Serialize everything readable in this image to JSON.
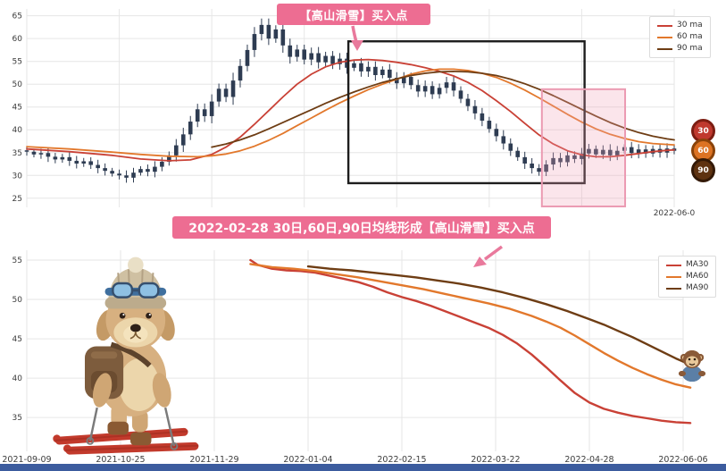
{
  "colors": {
    "ma30": "#c94136",
    "ma60": "#e2782c",
    "ma90": "#6e3d14",
    "candle": "#2e3c52",
    "grid": "#e6e6e6",
    "tick_text": "#3c3c3c",
    "pink": "#ed6d92",
    "pink_box_border": "#eb9ab2",
    "pink_box_fill": "rgba(242,163,184,0.28)",
    "black_box": "#1d1d1d",
    "bottom_bar": "#3c5c9e"
  },
  "annotations_text": {
    "callout": "【高山滑雪】买入点",
    "banner": "2022-02-28 30日,60日,90日均线形成【高山滑雪】买入点"
  },
  "badges": [
    {
      "label": "30",
      "fill": "#c0392e",
      "ring": "#7c1d12"
    },
    {
      "label": "60",
      "fill": "#dd7323",
      "ring": "#8a4309"
    },
    {
      "label": "90",
      "fill": "#5e3210",
      "ring": "#331906"
    }
  ],
  "chart_data": [
    {
      "type": "candlestick+ma",
      "title": "",
      "x_range": [
        "2021-09-09",
        "2022-06-06"
      ],
      "x_tick_idx": [
        0,
        13,
        26,
        39,
        52,
        65,
        78,
        91
      ],
      "x_tick_labels": [
        "2021-09-09",
        "2021-10-25",
        "2021-11-29",
        "2022-01-04",
        "2022-02-15",
        "2022-03-22",
        "2022-04-28",
        "2022-06-06"
      ],
      "show_x_labels": false,
      "x_last_label": "2022-06-0",
      "y_ticks": [
        25,
        30,
        35,
        40,
        45,
        50,
        55,
        60,
        65
      ],
      "ylim": [
        23,
        66.5
      ],
      "legend_position": "upper right",
      "closes": [
        35.2,
        34.6,
        34.9,
        34.1,
        33.5,
        34.0,
        33.2,
        32.6,
        33.1,
        32.3,
        31.6,
        31.0,
        30.4,
        30.0,
        29.5,
        30.6,
        31.4,
        30.8,
        31.9,
        33.0,
        34.4,
        36.6,
        39.0,
        41.8,
        44.5,
        43.0,
        46.2,
        49.0,
        47.2,
        50.8,
        54.0,
        57.5,
        61.0,
        63.0,
        60.0,
        62.0,
        58.5,
        56.0,
        57.6,
        55.4,
        56.8,
        54.8,
        56.2,
        54.4,
        55.6,
        53.6,
        54.6,
        52.8,
        53.8,
        52.0,
        53.2,
        51.4,
        50.2,
        51.6,
        49.8,
        48.4,
        49.6,
        47.8,
        49.2,
        50.4,
        48.6,
        46.8,
        45.2,
        43.6,
        42.0,
        40.2,
        38.6,
        37.0,
        35.4,
        34.0,
        32.6,
        31.6,
        30.8,
        32.4,
        33.8,
        32.9,
        34.4,
        33.6,
        34.8,
        35.8,
        34.6,
        35.6,
        34.4,
        35.4,
        36.2,
        34.9,
        35.7,
        34.8,
        35.8,
        35.0,
        35.9,
        35.4
      ],
      "series": [
        {
          "name": "30 ma",
          "color": "#c94136",
          "points": [
            [
              0,
              35.8
            ],
            [
              6,
              35.2
            ],
            [
              12,
              34.4
            ],
            [
              16,
              33.6
            ],
            [
              20,
              33.2
            ],
            [
              23,
              33.4
            ],
            [
              26,
              34.6
            ],
            [
              28,
              36.2
            ],
            [
              30,
              38.4
            ],
            [
              32,
              41.2
            ],
            [
              34,
              44.2
            ],
            [
              36,
              47.2
            ],
            [
              38,
              50.0
            ],
            [
              40,
              52.2
            ],
            [
              42,
              53.8
            ],
            [
              44,
              54.8
            ],
            [
              46,
              55.3
            ],
            [
              48,
              55.4
            ],
            [
              50,
              55.2
            ],
            [
              52,
              54.8
            ],
            [
              54,
              54.3
            ],
            [
              56,
              53.6
            ],
            [
              58,
              52.8
            ],
            [
              60,
              51.8
            ],
            [
              62,
              50.4
            ],
            [
              64,
              48.6
            ],
            [
              66,
              46.4
            ],
            [
              68,
              44.0
            ],
            [
              70,
              41.4
            ],
            [
              72,
              38.9
            ],
            [
              74,
              36.9
            ],
            [
              76,
              35.4
            ],
            [
              78,
              34.5
            ],
            [
              80,
              34.1
            ],
            [
              82,
              34.1
            ],
            [
              84,
              34.4
            ],
            [
              86,
              34.8
            ],
            [
              88,
              35.2
            ],
            [
              90,
              35.5
            ],
            [
              91,
              35.6
            ]
          ]
        },
        {
          "name": "60 ma",
          "color": "#e2782c",
          "points": [
            [
              0,
              36.3
            ],
            [
              6,
              35.8
            ],
            [
              12,
              35.1
            ],
            [
              16,
              34.6
            ],
            [
              20,
              34.2
            ],
            [
              24,
              34.1
            ],
            [
              26,
              34.3
            ],
            [
              28,
              34.7
            ],
            [
              30,
              35.4
            ],
            [
              32,
              36.4
            ],
            [
              34,
              37.7
            ],
            [
              36,
              39.2
            ],
            [
              38,
              40.9
            ],
            [
              40,
              42.6
            ],
            [
              42,
              44.3
            ],
            [
              44,
              45.9
            ],
            [
              46,
              47.4
            ],
            [
              48,
              48.8
            ],
            [
              50,
              50.0
            ],
            [
              52,
              51.1
            ],
            [
              54,
              52.2
            ],
            [
              56,
              52.9
            ],
            [
              58,
              53.3
            ],
            [
              60,
              53.3
            ],
            [
              62,
              53.0
            ],
            [
              64,
              52.4
            ],
            [
              66,
              51.5
            ],
            [
              68,
              50.2
            ],
            [
              70,
              48.7
            ],
            [
              72,
              47.0
            ],
            [
              74,
              45.2
            ],
            [
              76,
              43.4
            ],
            [
              78,
              41.7
            ],
            [
              80,
              40.2
            ],
            [
              82,
              39.0
            ],
            [
              84,
              38.1
            ],
            [
              86,
              37.4
            ],
            [
              88,
              37.0
            ],
            [
              90,
              36.8
            ],
            [
              91,
              36.7
            ]
          ]
        },
        {
          "name": "90 ma",
          "color": "#6e3d14",
          "points": [
            [
              26,
              36.2
            ],
            [
              28,
              36.9
            ],
            [
              30,
              37.8
            ],
            [
              32,
              38.9
            ],
            [
              34,
              40.2
            ],
            [
              36,
              41.6
            ],
            [
              38,
              43.0
            ],
            [
              40,
              44.4
            ],
            [
              42,
              45.8
            ],
            [
              44,
              47.1
            ],
            [
              46,
              48.3
            ],
            [
              48,
              49.4
            ],
            [
              50,
              50.4
            ],
            [
              52,
              51.2
            ],
            [
              54,
              51.9
            ],
            [
              56,
              52.4
            ],
            [
              58,
              52.7
            ],
            [
              60,
              52.8
            ],
            [
              62,
              52.7
            ],
            [
              64,
              52.4
            ],
            [
              66,
              51.9
            ],
            [
              68,
              51.1
            ],
            [
              70,
              50.1
            ],
            [
              72,
              48.9
            ],
            [
              74,
              47.5
            ],
            [
              76,
              46.0
            ],
            [
              78,
              44.5
            ],
            [
              80,
              43.0
            ],
            [
              82,
              41.6
            ],
            [
              84,
              40.4
            ],
            [
              86,
              39.4
            ],
            [
              88,
              38.6
            ],
            [
              90,
              38.0
            ],
            [
              91,
              37.8
            ]
          ]
        }
      ],
      "annotations": {
        "black_box": {
          "i1": 45.2,
          "i2": 78.4,
          "v1": 59.4,
          "v2": 28.3
        },
        "pink_box": {
          "i1": 72.4,
          "i2": 84.1,
          "v1": 48.9,
          "v2": 23.2
        }
      }
    },
    {
      "type": "line",
      "title": "",
      "x_range": [
        "2021-09-09",
        "2022-06-06"
      ],
      "x_tick_idx": [
        0,
        13,
        26,
        39,
        52,
        65,
        78,
        91
      ],
      "x_tick_labels": [
        "2021-09-09",
        "2021-10-25",
        "2021-11-29",
        "2022-01-04",
        "2022-02-15",
        "2022-03-22",
        "2022-04-28",
        "2022-06-06"
      ],
      "show_x_labels": true,
      "y_ticks": [
        35,
        40,
        45,
        50,
        55
      ],
      "ylim": [
        30.7,
        56.25
      ],
      "legend_position": "upper right",
      "series": [
        {
          "name": "MA30",
          "color": "#c94136",
          "points": [
            [
              31,
              55.0
            ],
            [
              32,
              54.4
            ],
            [
              34,
              53.9
            ],
            [
              36,
              53.7
            ],
            [
              38,
              53.6
            ],
            [
              40,
              53.4
            ],
            [
              42,
              53.0
            ],
            [
              44,
              52.6
            ],
            [
              46,
              52.2
            ],
            [
              48,
              51.6
            ],
            [
              50,
              50.9
            ],
            [
              52,
              50.3
            ],
            [
              54,
              49.8
            ],
            [
              56,
              49.2
            ],
            [
              58,
              48.5
            ],
            [
              60,
              47.8
            ],
            [
              62,
              47.1
            ],
            [
              64,
              46.4
            ],
            [
              66,
              45.5
            ],
            [
              68,
              44.4
            ],
            [
              70,
              43.0
            ],
            [
              72,
              41.4
            ],
            [
              74,
              39.7
            ],
            [
              76,
              38.1
            ],
            [
              78,
              36.9
            ],
            [
              80,
              36.1
            ],
            [
              82,
              35.6
            ],
            [
              84,
              35.2
            ],
            [
              86,
              34.9
            ],
            [
              88,
              34.6
            ],
            [
              90,
              34.4
            ],
            [
              92,
              34.3
            ]
          ]
        },
        {
          "name": "MA60",
          "color": "#e2782c",
          "points": [
            [
              31,
              54.5
            ],
            [
              34,
              54.1
            ],
            [
              37,
              53.9
            ],
            [
              40,
              53.6
            ],
            [
              43,
              53.2
            ],
            [
              46,
              52.8
            ],
            [
              49,
              52.3
            ],
            [
              52,
              51.8
            ],
            [
              55,
              51.3
            ],
            [
              58,
              50.7
            ],
            [
              61,
              50.1
            ],
            [
              64,
              49.5
            ],
            [
              67,
              48.8
            ],
            [
              70,
              47.9
            ],
            [
              72,
              47.2
            ],
            [
              74,
              46.4
            ],
            [
              76,
              45.4
            ],
            [
              78,
              44.3
            ],
            [
              80,
              43.2
            ],
            [
              82,
              42.2
            ],
            [
              84,
              41.3
            ],
            [
              86,
              40.5
            ],
            [
              88,
              39.8
            ],
            [
              90,
              39.2
            ],
            [
              92,
              38.8
            ]
          ]
        },
        {
          "name": "MA90",
          "color": "#6e3d14",
          "points": [
            [
              39,
              54.2
            ],
            [
              42,
              53.9
            ],
            [
              45,
              53.7
            ],
            [
              48,
              53.4
            ],
            [
              51,
              53.1
            ],
            [
              54,
              52.8
            ],
            [
              57,
              52.4
            ],
            [
              60,
              52.0
            ],
            [
              63,
              51.5
            ],
            [
              66,
              50.9
            ],
            [
              69,
              50.2
            ],
            [
              72,
              49.4
            ],
            [
              75,
              48.5
            ],
            [
              78,
              47.5
            ],
            [
              80,
              46.8
            ],
            [
              82,
              46.0
            ],
            [
              84,
              45.2
            ],
            [
              86,
              44.3
            ],
            [
              88,
              43.4
            ],
            [
              90,
              42.5
            ],
            [
              92,
              41.7
            ]
          ]
        }
      ]
    }
  ],
  "decorations": {
    "dog": "plush dog skier with knit hat, ski goggles, backpack and red skis",
    "monkeys_count": 3
  }
}
